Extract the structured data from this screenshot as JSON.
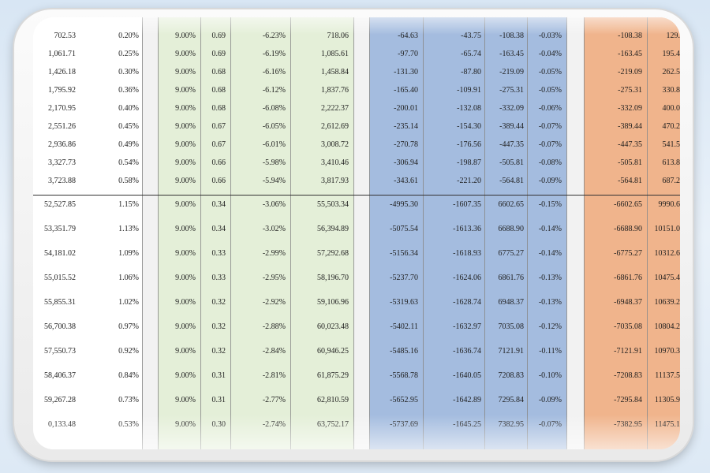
{
  "table": {
    "column_colors": {
      "white": "#ffffff",
      "green": "#e4efd8",
      "blue": "#a4bcdf",
      "orange": "#f0b48c",
      "gap": "#f2f2f2"
    },
    "top_rows": [
      [
        "702.53",
        "0.20%",
        "9.00%",
        "0.69",
        "-6.23%",
        "718.06",
        "-64.63",
        "-43.75",
        "-108.38",
        "-0.03%",
        "-108.38",
        "129."
      ],
      [
        "1,061.71",
        "0.25%",
        "9.00%",
        "0.69",
        "-6.19%",
        "1,085.61",
        "-97.70",
        "-65.74",
        "-163.45",
        "-0.04%",
        "-163.45",
        "195.4"
      ],
      [
        "1,426.18",
        "0.30%",
        "9.00%",
        "0.68",
        "-6.16%",
        "1,458.84",
        "-131.30",
        "-87.80",
        "-219.09",
        "-0.05%",
        "-219.09",
        "262.5"
      ],
      [
        "1,795.92",
        "0.36%",
        "9.00%",
        "0.68",
        "-6.12%",
        "1,837.76",
        "-165.40",
        "-109.91",
        "-275.31",
        "-0.05%",
        "-275.31",
        "330.8"
      ],
      [
        "2,170.95",
        "0.40%",
        "9.00%",
        "0.68",
        "-6.08%",
        "2,222.37",
        "-200.01",
        "-132.08",
        "-332.09",
        "-0.06%",
        "-332.09",
        "400.0"
      ],
      [
        "2,551.26",
        "0.45%",
        "9.00%",
        "0.67",
        "-6.05%",
        "2,612.69",
        "-235.14",
        "-154.30",
        "-389.44",
        "-0.07%",
        "-389.44",
        "470.2"
      ],
      [
        "2,936.86",
        "0.49%",
        "9.00%",
        "0.67",
        "-6.01%",
        "3,008.72",
        "-270.78",
        "-176.56",
        "-447.35",
        "-0.07%",
        "-447.35",
        "541.5"
      ],
      [
        "3,327.73",
        "0.54%",
        "9.00%",
        "0.66",
        "-5.98%",
        "3,410.46",
        "-306.94",
        "-198.87",
        "-505.81",
        "-0.08%",
        "-505.81",
        "613.8"
      ],
      [
        "3,723.88",
        "0.58%",
        "9.00%",
        "0.66",
        "-5.94%",
        "3,817.93",
        "-343.61",
        "-221.20",
        "-564.81",
        "-0.09%",
        "-564.81",
        "687.2"
      ]
    ],
    "bottom_rows": [
      [
        "52,527.85",
        "1.15%",
        "9.00%",
        "0.34",
        "-3.06%",
        "55,503.34",
        "-4995.30",
        "-1607.35",
        "6602.65",
        "-0.15%",
        "-6602.65",
        "9990.6"
      ],
      [
        "53,351.79",
        "1.13%",
        "9.00%",
        "0.34",
        "-3.02%",
        "56,394.89",
        "-5075.54",
        "-1613.36",
        "6688.90",
        "-0.14%",
        "-6688.90",
        "10151.0"
      ],
      [
        "54,181.02",
        "1.09%",
        "9.00%",
        "0.33",
        "-2.99%",
        "57,292.68",
        "-5156.34",
        "-1618.93",
        "6775.27",
        "-0.14%",
        "-6775.27",
        "10312.6"
      ],
      [
        "55,015.52",
        "1.06%",
        "9.00%",
        "0.33",
        "-2.95%",
        "58,196.70",
        "-5237.70",
        "-1624.06",
        "6861.76",
        "-0.13%",
        "-6861.76",
        "10475.4"
      ],
      [
        "55,855.31",
        "1.02%",
        "9.00%",
        "0.32",
        "-2.92%",
        "59,106.96",
        "-5319.63",
        "-1628.74",
        "6948.37",
        "-0.13%",
        "-6948.37",
        "10639.2"
      ],
      [
        "56,700.38",
        "0.97%",
        "9.00%",
        "0.32",
        "-2.88%",
        "60,023.48",
        "-5402.11",
        "-1632.97",
        "7035.08",
        "-0.12%",
        "-7035.08",
        "10804.2"
      ],
      [
        "57,550.73",
        "0.92%",
        "9.00%",
        "0.32",
        "-2.84%",
        "60,946.25",
        "-5485.16",
        "-1636.74",
        "7121.91",
        "-0.11%",
        "-7121.91",
        "10970.3"
      ],
      [
        "58,406.37",
        "0.84%",
        "9.00%",
        "0.31",
        "-2.81%",
        "61,875.29",
        "-5568.78",
        "-1640.05",
        "7208.83",
        "-0.10%",
        "-7208.83",
        "11137.5"
      ],
      [
        "59,267.28",
        "0.73%",
        "9.00%",
        "0.31",
        "-2.77%",
        "62,810.59",
        "-5652.95",
        "-1642.89",
        "7295.84",
        "-0.09%",
        "-7295.84",
        "11305.9"
      ],
      [
        "0,133.48",
        "0.53%",
        "9.00%",
        "0.30",
        "-2.74%",
        "63,752.17",
        "-5737.69",
        "-1645.25",
        "7382.95",
        "-0.07%",
        "-7382.95",
        "11475.1"
      ]
    ]
  }
}
